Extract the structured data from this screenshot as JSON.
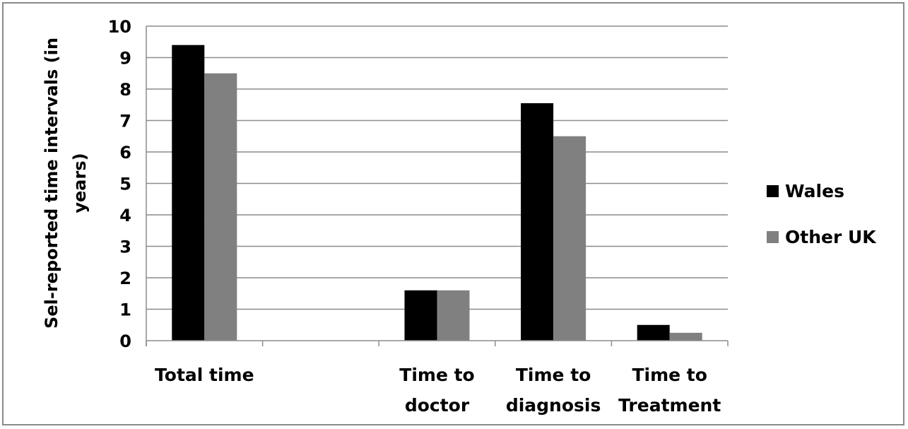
{
  "chart_data": {
    "type": "bar",
    "title": "",
    "xlabel": "",
    "ylabel_lines": [
      "Sel-reported time intervals (in",
      "years)"
    ],
    "ylim": [
      0,
      10
    ],
    "yticks": [
      0,
      1,
      2,
      3,
      4,
      5,
      6,
      7,
      8,
      9,
      10
    ],
    "grid": true,
    "legend_position": "right",
    "categories": [
      {
        "lines": [
          "Total time"
        ]
      },
      {
        "lines": [
          ""
        ]
      },
      {
        "lines": [
          "Time to",
          "doctor"
        ]
      },
      {
        "lines": [
          "Time to",
          "diagnosis"
        ]
      },
      {
        "lines": [
          "Time to",
          "Treatment"
        ]
      }
    ],
    "series": [
      {
        "name": "Wales",
        "color": "#000000",
        "values": [
          9.4,
          null,
          1.6,
          7.55,
          0.5
        ]
      },
      {
        "name": "Other UK",
        "color": "#808080",
        "values": [
          8.5,
          null,
          1.6,
          6.5,
          0.25
        ]
      }
    ]
  }
}
